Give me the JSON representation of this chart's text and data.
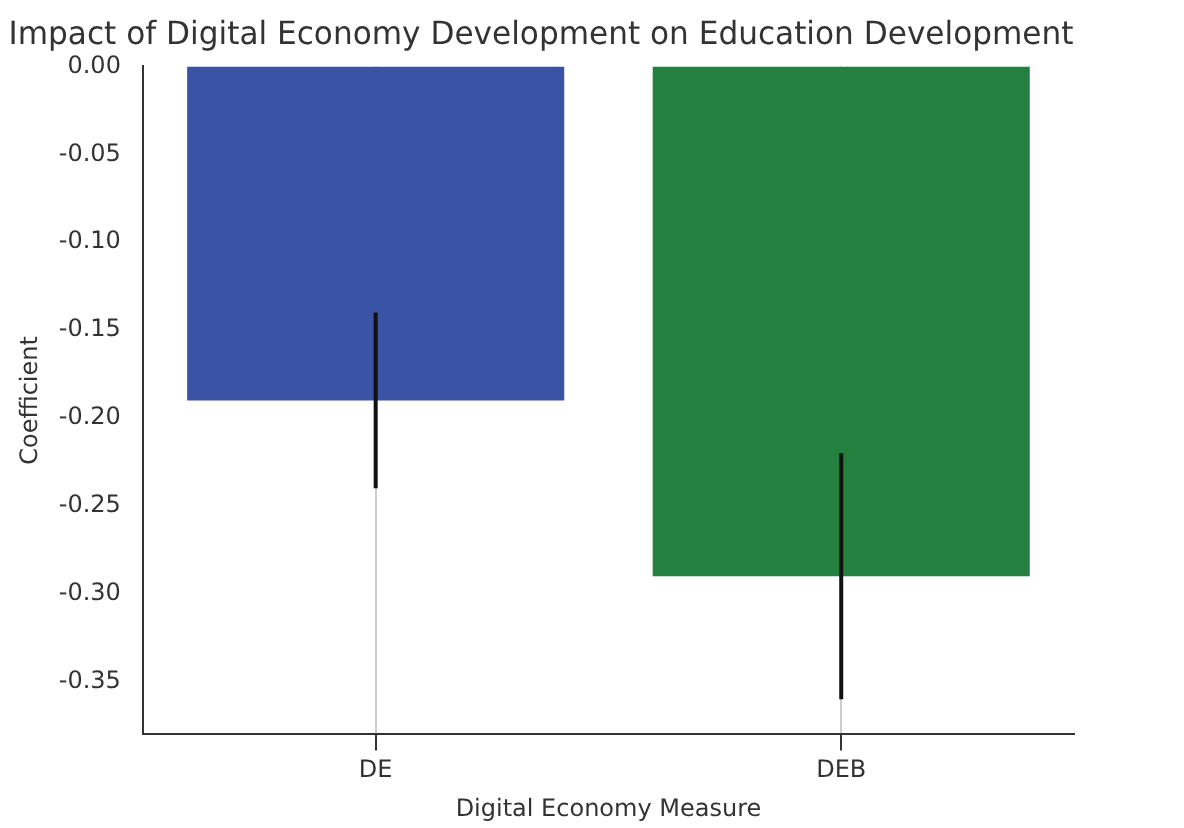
{
  "chart_data": {
    "type": "bar",
    "title": "Impact of Digital Economy Development on Education Development",
    "xlabel": "Digital Economy Measure",
    "ylabel": "Coefficient",
    "categories": [
      "DE",
      "DEB"
    ],
    "values": [
      -0.19,
      -0.29
    ],
    "colors": [
      "#3a53a4",
      "#23803e"
    ],
    "errors": [
      0.05,
      0.07
    ],
    "ylim": [
      -0.38,
      0
    ],
    "yticks": [
      {
        "value": 0,
        "label": "0.00"
      },
      {
        "value": -0.05,
        "label": "-0.05"
      },
      {
        "value": -0.1,
        "label": "-0.10"
      },
      {
        "value": -0.15,
        "label": "-0.15"
      },
      {
        "value": -0.2,
        "label": "-0.20"
      },
      {
        "value": -0.25,
        "label": "-0.25"
      },
      {
        "value": -0.3,
        "label": "-0.30"
      },
      {
        "value": -0.35,
        "label": "-0.35"
      }
    ],
    "grid": "x",
    "legend": false
  }
}
